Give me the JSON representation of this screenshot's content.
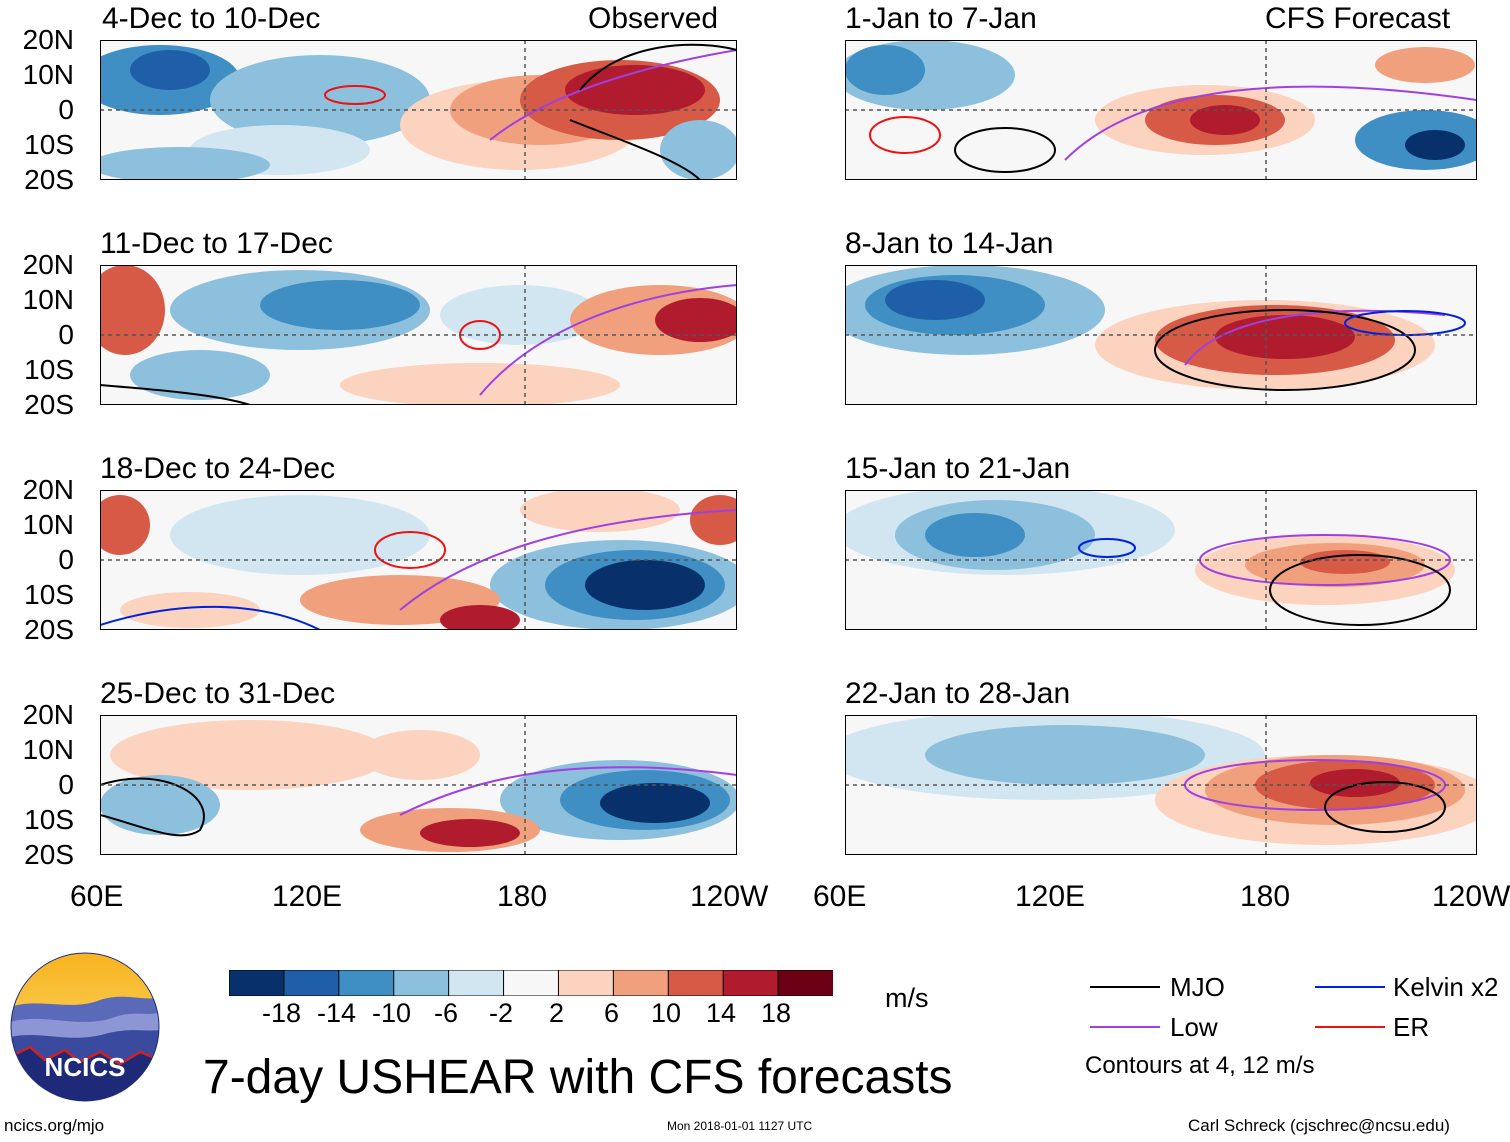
{
  "columns": {
    "left_label": "Observed",
    "right_label": "CFS Forecast"
  },
  "panels_left": [
    {
      "title": "4-Dec to 10-Dec"
    },
    {
      "title": "11-Dec to 17-Dec"
    },
    {
      "title": "18-Dec to 24-Dec"
    },
    {
      "title": "25-Dec to 31-Dec"
    }
  ],
  "panels_right": [
    {
      "title": "1-Jan to 7-Jan"
    },
    {
      "title": "8-Jan to 14-Jan"
    },
    {
      "title": "15-Jan to 21-Jan"
    },
    {
      "title": "22-Jan to 28-Jan"
    }
  ],
  "y_ticks": [
    "20N",
    "10N",
    "0",
    "10S",
    "20S"
  ],
  "x_ticks": [
    "60E",
    "120E",
    "180",
    "120W"
  ],
  "colorbar": {
    "labels": [
      "-18",
      "-14",
      "-10",
      "-6",
      "-2",
      "2",
      "6",
      "10",
      "14",
      "18"
    ],
    "colors": [
      "#08306b",
      "#1f5fa8",
      "#3f8fc5",
      "#8cc0dd",
      "#d2e6f2",
      "#f7f7f7",
      "#fbd3bf",
      "#f1a07d",
      "#d65a46",
      "#b01c2e",
      "#6b0015"
    ],
    "units": "m/s"
  },
  "legend": {
    "mjo": "MJO",
    "low": "Low",
    "kelvin": "Kelvin x2",
    "er": "ER",
    "contours": "Contours at 4, 12 m/s",
    "colors": {
      "mjo": "#000000",
      "low": "#a040e0",
      "kelvin": "#0022dd",
      "er": "#ee1111"
    }
  },
  "logo_text": "NCICS",
  "main_title": "7-day USHEAR with CFS forecasts",
  "footer": {
    "left": "ncics.org/mjo",
    "center": "Mon 2018-01-01 1127 UTC",
    "right": "Carl Schreck (cjschrec@ncsu.edu)"
  },
  "chart_data": {
    "type": "heatmap",
    "variable": "7-day USHEAR anomaly",
    "units": "m/s",
    "x_range": [
      "60E",
      "120W"
    ],
    "y_range": [
      "20S",
      "20N"
    ],
    "contour_levels": [
      4,
      12
    ],
    "contour_series": [
      "MJO",
      "Low",
      "Kelvin x2",
      "ER"
    ],
    "observed_periods": [
      "4-Dec to 10-Dec",
      "11-Dec to 17-Dec",
      "18-Dec to 24-Dec",
      "25-Dec to 31-Dec"
    ],
    "forecast_periods": [
      "1-Jan to 7-Jan",
      "8-Jan to 14-Jan",
      "15-Jan to 21-Jan",
      "22-Jan to 28-Jan"
    ]
  }
}
